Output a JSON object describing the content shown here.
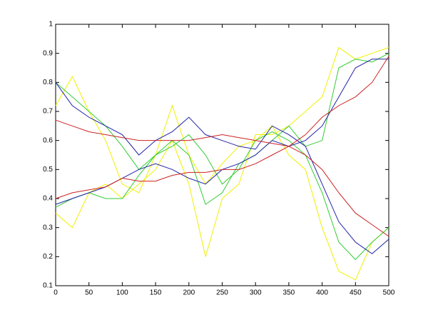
{
  "chart_data": {
    "type": "line",
    "x": [
      0,
      25,
      50,
      75,
      100,
      125,
      150,
      175,
      200,
      225,
      250,
      275,
      300,
      325,
      350,
      375,
      400,
      425,
      450,
      475,
      500
    ],
    "series": [
      {
        "color": "#f0f000",
        "values": [
          0.72,
          0.82,
          0.7,
          0.6,
          0.45,
          0.42,
          0.55,
          0.72,
          0.55,
          0.45,
          0.52,
          0.58,
          0.6,
          0.65,
          0.55,
          0.5,
          0.3,
          0.15,
          0.12,
          0.25,
          0.3
        ]
      },
      {
        "color": "#f0f000",
        "values": [
          0.35,
          0.3,
          0.42,
          0.45,
          0.4,
          0.45,
          0.5,
          0.6,
          0.45,
          0.2,
          0.4,
          0.45,
          0.62,
          0.62,
          0.65,
          0.7,
          0.75,
          0.92,
          0.88,
          0.9,
          0.92
        ]
      },
      {
        "color": "#33cc33",
        "values": [
          0.8,
          0.75,
          0.7,
          0.65,
          0.58,
          0.5,
          0.55,
          0.58,
          0.62,
          0.55,
          0.45,
          0.5,
          0.6,
          0.63,
          0.6,
          0.55,
          0.42,
          0.25,
          0.19,
          0.25,
          0.3
        ]
      },
      {
        "color": "#33cc33",
        "values": [
          0.37,
          0.4,
          0.42,
          0.4,
          0.4,
          0.48,
          0.55,
          0.6,
          0.55,
          0.38,
          0.42,
          0.52,
          0.55,
          0.6,
          0.65,
          0.58,
          0.6,
          0.85,
          0.88,
          0.87,
          0.9
        ]
      },
      {
        "color": "#2222aa",
        "values": [
          0.8,
          0.72,
          0.68,
          0.65,
          0.62,
          0.55,
          0.6,
          0.63,
          0.68,
          0.62,
          0.6,
          0.58,
          0.57,
          0.65,
          0.62,
          0.58,
          0.45,
          0.32,
          0.25,
          0.21,
          0.26
        ]
      },
      {
        "color": "#2222aa",
        "values": [
          0.38,
          0.4,
          0.42,
          0.44,
          0.47,
          0.5,
          0.52,
          0.5,
          0.47,
          0.45,
          0.5,
          0.52,
          0.55,
          0.6,
          0.58,
          0.6,
          0.65,
          0.75,
          0.85,
          0.88,
          0.88
        ]
      },
      {
        "color": "#cc2222",
        "values": [
          0.67,
          0.65,
          0.63,
          0.62,
          0.61,
          0.6,
          0.6,
          0.6,
          0.6,
          0.61,
          0.62,
          0.61,
          0.6,
          0.59,
          0.58,
          0.55,
          0.5,
          0.42,
          0.35,
          0.31,
          0.27
        ]
      },
      {
        "color": "#cc2222",
        "values": [
          0.4,
          0.42,
          0.43,
          0.44,
          0.47,
          0.46,
          0.46,
          0.48,
          0.49,
          0.49,
          0.5,
          0.5,
          0.52,
          0.55,
          0.58,
          0.62,
          0.68,
          0.72,
          0.75,
          0.8,
          0.89
        ]
      }
    ],
    "xlim": [
      0,
      500
    ],
    "xticks": [
      0,
      50,
      100,
      150,
      200,
      250,
      300,
      350,
      400,
      450,
      500
    ],
    "ylim": [
      0.1,
      1
    ],
    "yticks": [
      0.1,
      0.2,
      0.3,
      0.4,
      0.5,
      0.6,
      0.7,
      0.8,
      0.9,
      1
    ],
    "grid": false
  }
}
